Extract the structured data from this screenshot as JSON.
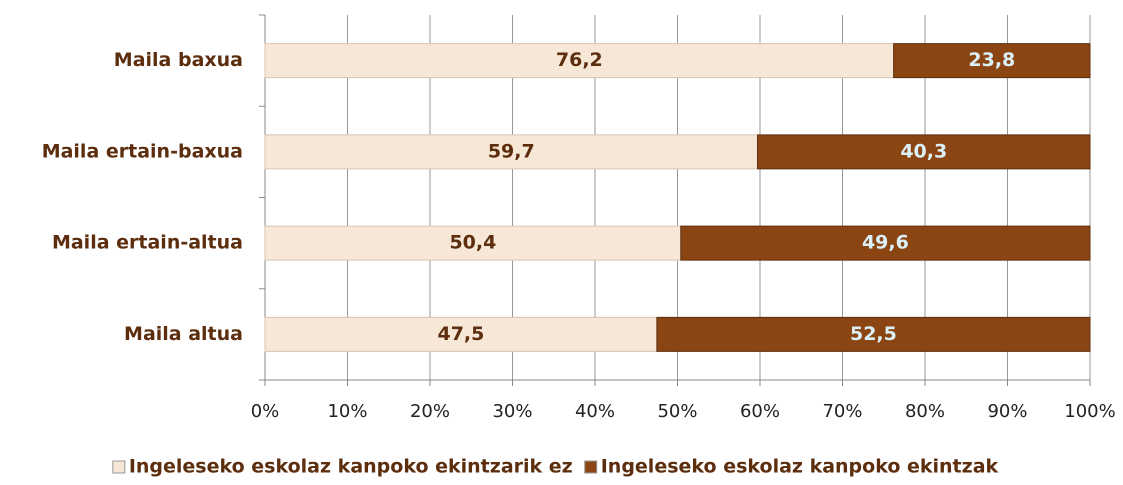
{
  "chart_data": {
    "type": "stacked-barh",
    "categories": [
      "Maila baxua",
      "Maila ertain-baxua",
      "Maila ertain-altua",
      "Maila altua"
    ],
    "series": [
      {
        "name": "Ingeleseko eskolaz kanpoko ekintzarik ez",
        "color": "#f6e7d7",
        "label_color": "#5c2e0e",
        "values": [
          76.2,
          59.7,
          50.4,
          47.5
        ],
        "value_labels": [
          "76,2",
          "59,7",
          "50,4",
          "47,5"
        ]
      },
      {
        "name": "Ingeleseko eskolaz kanpoko ekintzak",
        "color": "#8a4512",
        "label_color": "#dcf0f8",
        "values": [
          23.8,
          40.3,
          49.6,
          52.5
        ],
        "value_labels": [
          "23,8",
          "40,3",
          "49,6",
          "52,5"
        ]
      }
    ],
    "xlim": [
      0,
      100
    ],
    "xticks": [
      {
        "value": 0,
        "label": "0%"
      },
      {
        "value": 10,
        "label": "10%"
      },
      {
        "value": 20,
        "label": "20%"
      },
      {
        "value": 30,
        "label": "30%"
      },
      {
        "value": 40,
        "label": "40%"
      },
      {
        "value": 50,
        "label": "50%"
      },
      {
        "value": 60,
        "label": "60%"
      },
      {
        "value": 70,
        "label": "70%"
      },
      {
        "value": 80,
        "label": "80%"
      },
      {
        "value": 90,
        "label": "90%"
      },
      {
        "value": 100,
        "label": "100%"
      }
    ],
    "grid": true,
    "legend": "bottom"
  }
}
